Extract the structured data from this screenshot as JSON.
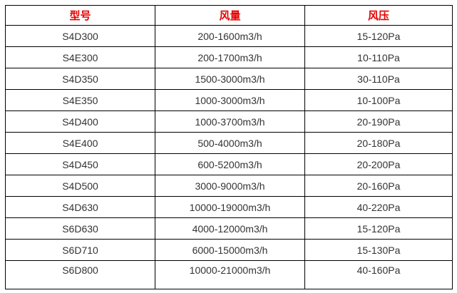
{
  "table": {
    "headers": {
      "model": "型号",
      "airflow": "风量",
      "pressure": "风压"
    },
    "rows": [
      {
        "model": "S4D300",
        "airflow": "200-1600m3/h",
        "pressure": "15-120Pa"
      },
      {
        "model": "S4E300",
        "airflow": "200-1700m3/h",
        "pressure": "10-110Pa"
      },
      {
        "model": "S4D350",
        "airflow": "1500-3000m3/h",
        "pressure": "30-110Pa"
      },
      {
        "model": "S4E350",
        "airflow": "1000-3000m3/h",
        "pressure": "10-100Pa"
      },
      {
        "model": "S4D400",
        "airflow": "1000-3700m3/h",
        "pressure": "20-190Pa"
      },
      {
        "model": "S4E400",
        "airflow": "500-4000m3/h",
        "pressure": "20-180Pa"
      },
      {
        "model": "S4D450",
        "airflow": "600-5200m3/h",
        "pressure": "20-200Pa"
      },
      {
        "model": "S4D500",
        "airflow": "3000-9000m3/h",
        "pressure": "20-160Pa"
      },
      {
        "model": "S4D630",
        "airflow": "10000-19000m3/h",
        "pressure": "40-220Pa"
      },
      {
        "model": "S6D630",
        "airflow": "4000-12000m3/h",
        "pressure": "15-120Pa"
      },
      {
        "model": "S6D710",
        "airflow": "6000-15000m3/h",
        "pressure": "15-130Pa"
      },
      {
        "model": "S6D800",
        "airflow": "10000-21000m3/h",
        "pressure": "40-160Pa"
      }
    ]
  },
  "colors": {
    "header_text": "#e60000",
    "body_text": "#333333",
    "border": "#000000",
    "background": "#ffffff"
  }
}
